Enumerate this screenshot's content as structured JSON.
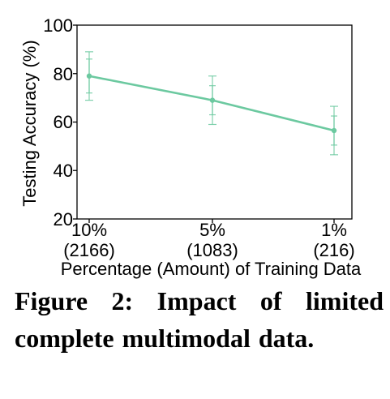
{
  "chart_data": {
    "type": "line",
    "categories": [
      "10%",
      "5%",
      "1%"
    ],
    "category_sublabels": [
      "(2166)",
      "(1083)",
      "(216)"
    ],
    "series": [
      {
        "values": [
          79,
          69,
          56.5
        ],
        "error": [
          10,
          10,
          10
        ],
        "inner_error": [
          7,
          6,
          6
        ]
      }
    ],
    "xlabel": "Percentage (Amount) of Training Data",
    "ylabel": "Testing Accuracy (%)",
    "ylim": [
      20,
      100
    ],
    "yticks": [
      "20",
      "40",
      "60",
      "80",
      "100"
    ],
    "grid": false,
    "color": "#6cc9a0"
  },
  "caption": "Figure 2: Impact of limited complete multimodal data."
}
